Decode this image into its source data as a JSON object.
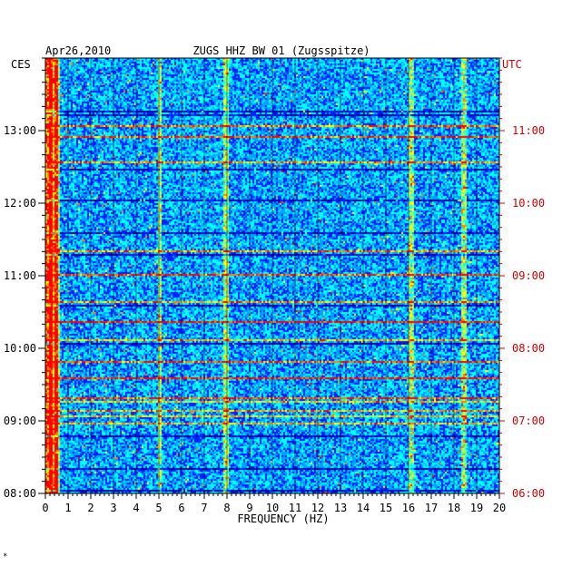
{
  "chart_data": {
    "type": "heatmap",
    "title": "ZUGS HHZ BW 01 (Zugsspitze)",
    "date_label": "Apr26,2010",
    "xlabel": "FREQUENCY (HZ)",
    "xlim": [
      0,
      20
    ],
    "x_ticks": [
      "0",
      "1",
      "2",
      "3",
      "4",
      "5",
      "6",
      "7",
      "8",
      "9",
      "10",
      "11",
      "12",
      "13",
      "14",
      "15",
      "16",
      "17",
      "18",
      "19",
      "20"
    ],
    "left_axis": {
      "zone": "CES",
      "ticks": [
        "13:00",
        "12:00",
        "11:00",
        "10:00",
        "09:00",
        "08:00"
      ]
    },
    "right_axis": {
      "zone": "UTC",
      "ticks": [
        "11:00",
        "10:00",
        "09:00",
        "08:00",
        "07:00",
        "06:00"
      ]
    },
    "time_range_ces": [
      "08:00",
      "13:50"
    ],
    "grid": true,
    "colormap": [
      "#0000a0",
      "#0020ff",
      "#00a0ff",
      "#00ffff",
      "#80ff80",
      "#ffff00",
      "#ff8000",
      "#ff0000"
    ],
    "hot_bands_hz": [
      0.2,
      0.5,
      5.0,
      7.9,
      16.1,
      18.4
    ]
  },
  "footnote": "*"
}
